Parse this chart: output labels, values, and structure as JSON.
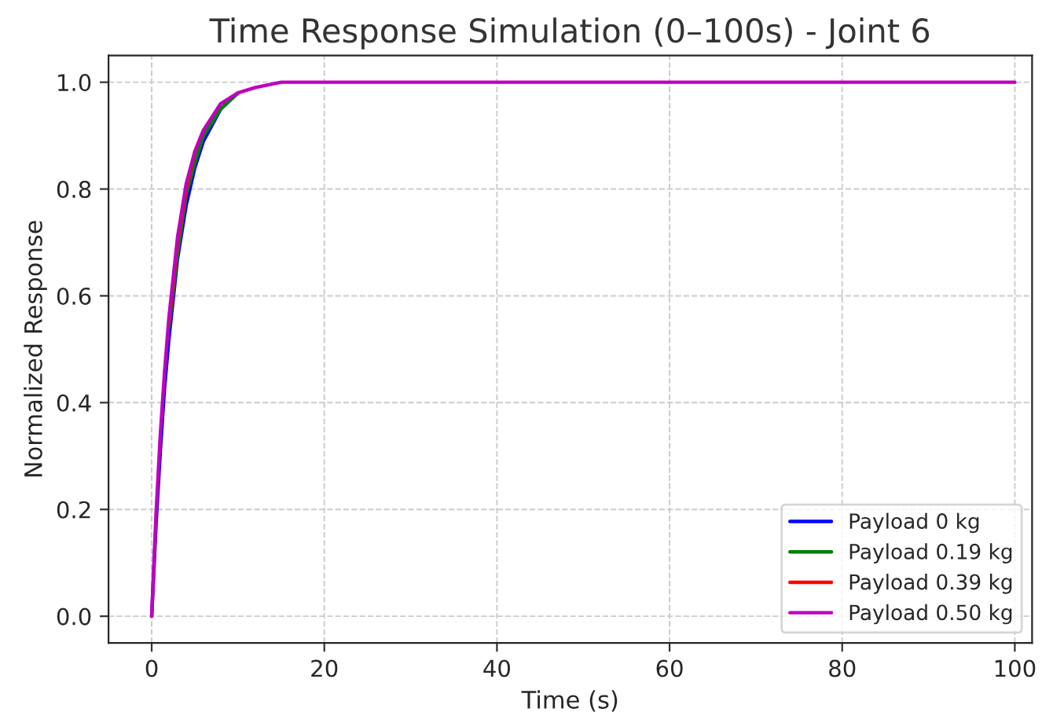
{
  "chart_data": {
    "type": "line",
    "title": "Time Response Simulation (0–100s) - Joint 6",
    "xlabel": "Time (s)",
    "ylabel": "Normalized Response",
    "x": [
      0,
      0.5,
      1,
      1.5,
      2,
      3,
      4,
      5,
      6,
      8,
      10,
      12,
      15,
      20,
      30,
      50,
      100
    ],
    "series": [
      {
        "name": "Payload 0 kg",
        "color": "#0000ff",
        "values": [
          0,
          0.17,
          0.31,
          0.43,
          0.52,
          0.67,
          0.77,
          0.84,
          0.89,
          0.95,
          0.98,
          null,
          null,
          null,
          null,
          null,
          null
        ]
      },
      {
        "name": "Payload 0.19 kg",
        "color": "#008000",
        "values": [
          null,
          null,
          null,
          null,
          0.54,
          0.68,
          0.79,
          0.85,
          0.9,
          0.95,
          0.98,
          null,
          null,
          null,
          null,
          null,
          null
        ]
      },
      {
        "name": "Payload 0.39 kg",
        "color": "#ff0000",
        "values": [
          null,
          null,
          null,
          null,
          0.55,
          0.7,
          0.8,
          0.87,
          0.91,
          null,
          null,
          null,
          null,
          null,
          null,
          null,
          null
        ]
      },
      {
        "name": "Payload 0.50 kg",
        "color": "#bf00bf",
        "values": [
          0,
          0.19,
          0.34,
          0.46,
          0.56,
          0.71,
          0.81,
          0.87,
          0.91,
          0.96,
          0.98,
          0.99,
          1.0,
          1.0,
          1.0,
          1.0,
          1.0
        ]
      }
    ],
    "xlim": [
      -5,
      102
    ],
    "ylim": [
      -0.05,
      1.05
    ],
    "xticks": [
      0,
      20,
      40,
      60,
      80,
      100
    ],
    "yticks": [
      {
        "value": 0,
        "label": "0.0"
      },
      {
        "value": 0.2,
        "label": "0.2"
      },
      {
        "value": 0.4,
        "label": "0.4"
      },
      {
        "value": 0.6,
        "label": "0.6"
      },
      {
        "value": 0.8,
        "label": "0.8"
      },
      {
        "value": 1.0,
        "label": "1.0"
      }
    ],
    "grid": true,
    "legend": "bottom right",
    "line_style": "solid"
  }
}
